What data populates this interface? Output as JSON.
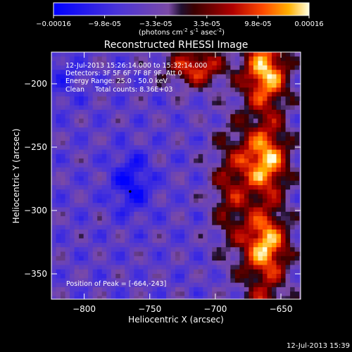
{
  "chart_data": {
    "type": "heatmap",
    "title": "Reconstructed RHESSI Image",
    "xlabel": "Heliocentric X (arcsec)",
    "ylabel": "Heliocentric Y (arcsec)",
    "xlim": [
      -825,
      -635
    ],
    "ylim": [
      -370,
      -175
    ],
    "x_ticks": [
      -800,
      -750,
      -700,
      -650
    ],
    "y_ticks": [
      -200,
      -250,
      -300,
      -350
    ],
    "colorbar": {
      "ticks": [
        "-0.00016",
        "-9.8e-05",
        "-3.3e-05",
        "3.3e-05",
        "9.8e-05",
        "0.00016"
      ],
      "unit_prefix": "(photons cm",
      "unit_exp1": "-2",
      "unit_mid": " s",
      "unit_exp2": "-1",
      "unit_mid2": " asec",
      "unit_exp3": "-2",
      "unit_suffix": ")",
      "min": -0.00016,
      "max": 0.00016
    },
    "annotations": [
      "12-Jul-2013 15:26:14.000 to 15:32:14.000",
      "Detectors: 3F 5F 6F 7F 8F 9F, Att 0",
      "Energy Range: 25.0 - 50.0 keV",
      "Clean     Total counts: 8.36E+03"
    ],
    "peak_label": "Position of Peak = [-664,-243]",
    "peak": [
      -664,
      -243
    ],
    "marker": [
      -765,
      -285
    ],
    "timestamp": "12-Jul-2013 15:39",
    "grid": false
  },
  "colors": {
    "background": "#000000",
    "text": "#ffffff"
  }
}
